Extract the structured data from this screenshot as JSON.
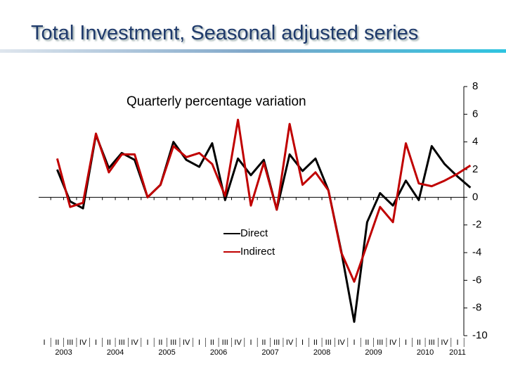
{
  "chart_data": {
    "type": "line",
    "title": "Total Investment, Seasonal adjusted series",
    "subtitle": "Quarterly percentage variation",
    "categories": [
      "I",
      "II",
      "III",
      "IV",
      "I",
      "II",
      "III",
      "IV",
      "I",
      "II",
      "III",
      "IV",
      "I",
      "II",
      "III",
      "IV",
      "I",
      "II",
      "III",
      "IV",
      "I",
      "II",
      "III",
      "IV",
      "I",
      "II",
      "III",
      "IV",
      "I",
      "II",
      "III",
      "IV",
      "I"
    ],
    "years": [
      "2003",
      "2004",
      "2005",
      "2006",
      "2007",
      "2008",
      "2009",
      "2010",
      "2011"
    ],
    "series": [
      {
        "name": "Direct",
        "color": "#000000",
        "values": [
          2.0,
          -0.3,
          -0.8,
          4.5,
          2.1,
          3.2,
          2.7,
          0.0,
          0.9,
          4.0,
          2.7,
          2.2,
          3.9,
          -0.2,
          2.8,
          1.6,
          2.7,
          -0.9,
          3.1,
          1.9,
          2.8,
          0.5,
          -3.9,
          -9.0,
          -1.8,
          0.3,
          -0.6,
          1.2,
          -0.2,
          3.7,
          2.4,
          1.5,
          0.7
        ]
      },
      {
        "name": "Indirect",
        "color": "#c00000",
        "values": [
          2.8,
          -0.7,
          -0.4,
          4.6,
          1.8,
          3.1,
          3.1,
          0.0,
          0.9,
          3.7,
          2.9,
          3.2,
          2.4,
          0.1,
          5.6,
          -0.6,
          2.5,
          -0.9,
          5.3,
          0.9,
          1.8,
          0.5,
          -4.0,
          -6.1,
          -3.4,
          -0.7,
          -1.8,
          3.9,
          1.0,
          0.8,
          1.2,
          1.7,
          2.3
        ]
      }
    ],
    "ylim": [
      -10,
      8
    ],
    "yticks": [
      -10,
      -8,
      -6,
      -4,
      -2,
      0,
      2,
      4,
      6,
      8
    ]
  }
}
